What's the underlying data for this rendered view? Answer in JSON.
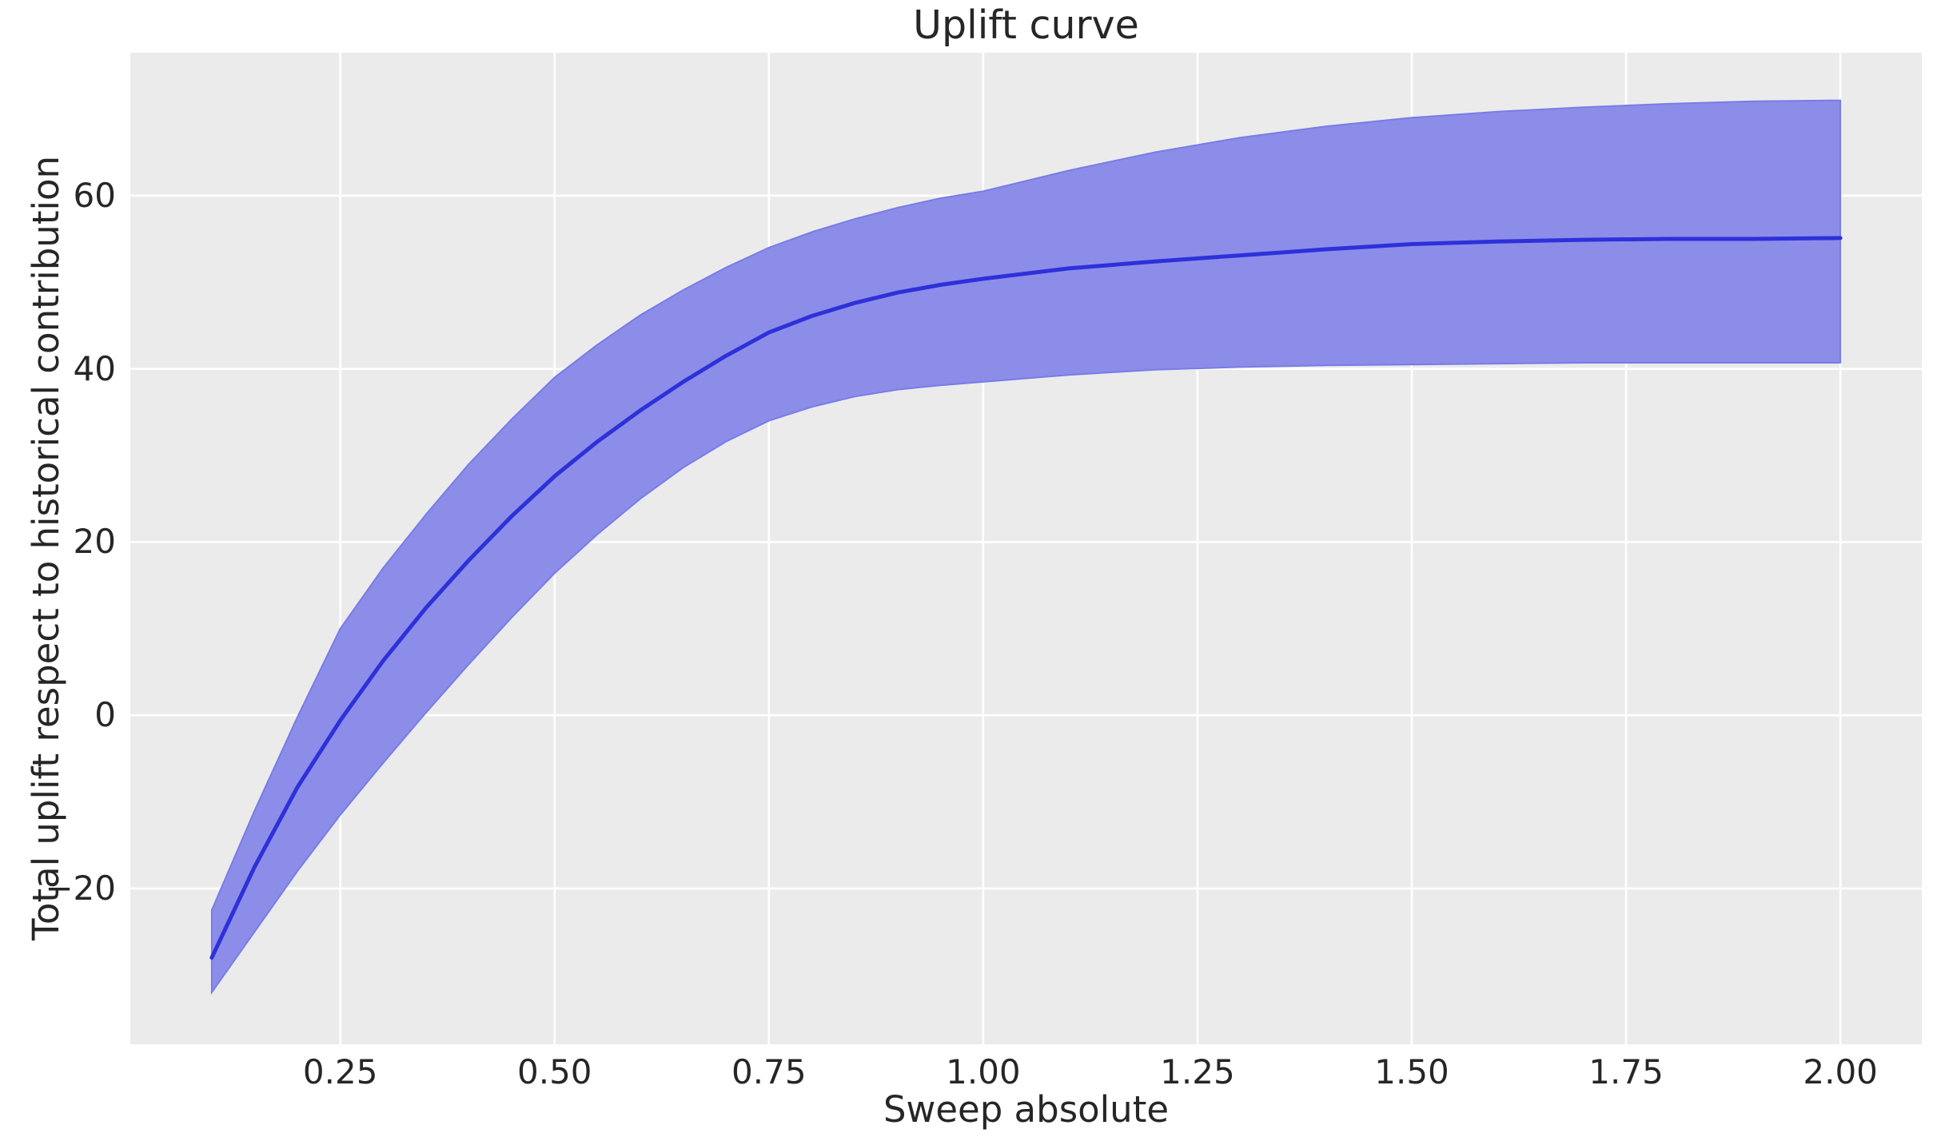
{
  "chart_data": {
    "type": "line",
    "title": "Uplift curve",
    "xlabel": "Sweep absolute",
    "ylabel": "Total uplift respect to historical contribution",
    "grid": true,
    "legend": "none",
    "xlim": [
      0.005,
      2.095
    ],
    "ylim": [
      -38,
      76.5
    ],
    "xticks": {
      "values": [
        0.25,
        0.5,
        0.75,
        1.0,
        1.25,
        1.5,
        1.75,
        2.0
      ],
      "labels": [
        "0.25",
        "0.50",
        "0.75",
        "1.00",
        "1.25",
        "1.50",
        "1.75",
        "2.00"
      ]
    },
    "yticks": {
      "values": [
        -20,
        0,
        20,
        40,
        60
      ],
      "labels": [
        "−20",
        "0",
        "20",
        "40",
        "60"
      ]
    },
    "x": [
      0.1,
      0.15,
      0.2,
      0.25,
      0.3,
      0.35,
      0.4,
      0.45,
      0.5,
      0.55,
      0.6,
      0.65,
      0.7,
      0.75,
      0.8,
      0.85,
      0.9,
      0.95,
      1.0,
      1.1,
      1.2,
      1.3,
      1.4,
      1.5,
      1.6,
      1.7,
      1.8,
      1.9,
      2.0
    ],
    "series": [
      {
        "name": "mean uplift",
        "values": [
          -28.0,
          -17.5,
          -8.3,
          -0.6,
          6.3,
          12.4,
          17.9,
          23.0,
          27.6,
          31.6,
          35.2,
          38.5,
          41.5,
          44.2,
          46.1,
          47.6,
          48.8,
          49.7,
          50.4,
          51.6,
          52.4,
          53.1,
          53.8,
          54.4,
          54.7,
          54.9,
          55.0,
          55.0,
          55.1
        ]
      }
    ],
    "band": {
      "name": "confidence interval",
      "upper": [
        -22.5,
        -11.0,
        -0.2,
        10.0,
        17.0,
        23.2,
        29.0,
        34.2,
        39.0,
        42.8,
        46.2,
        49.1,
        51.7,
        54.0,
        55.8,
        57.3,
        58.6,
        59.7,
        60.5,
        62.9,
        65.0,
        66.7,
        68.0,
        69.0,
        69.7,
        70.2,
        70.6,
        70.9,
        71.0
      ],
      "lower": [
        -32.0,
        -25.0,
        -18.0,
        -11.5,
        -5.5,
        0.3,
        5.9,
        11.3,
        16.4,
        20.9,
        25.0,
        28.6,
        31.6,
        34.0,
        35.6,
        36.8,
        37.6,
        38.1,
        38.5,
        39.3,
        39.9,
        40.2,
        40.4,
        40.5,
        40.6,
        40.7,
        40.7,
        40.7,
        40.7
      ]
    },
    "colors": {
      "line": "#2e30d9",
      "band_fill": "#8b8de9",
      "band_edge": "#787ce6",
      "plot_bg": "#ebebeb",
      "figure_bg": "#ffffff",
      "grid": "#ffffff",
      "text": "#262626"
    }
  }
}
